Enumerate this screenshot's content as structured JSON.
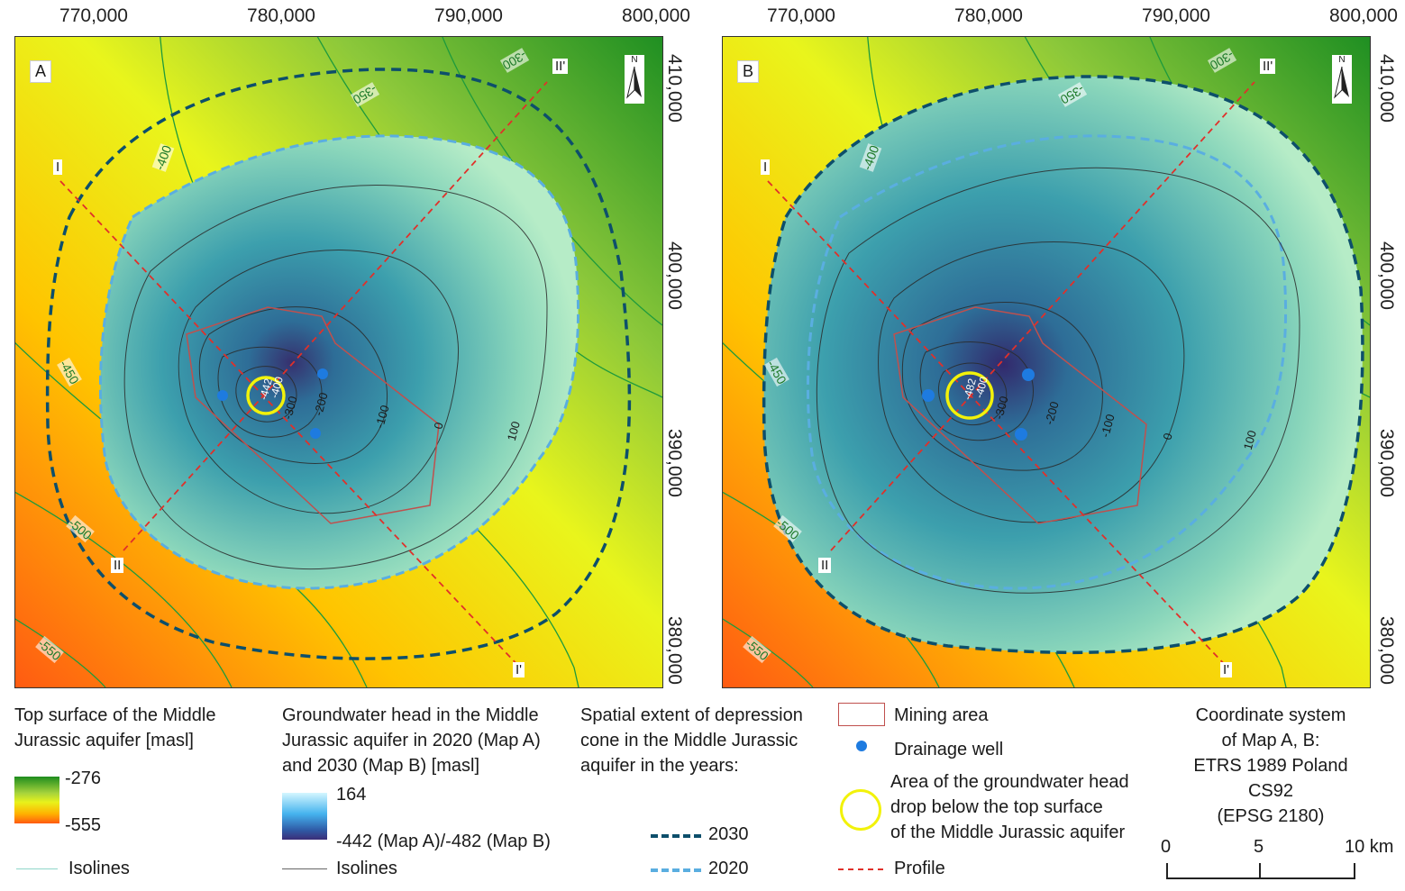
{
  "x_ticks": [
    "770,000",
    "780,000",
    "790,000",
    "800,000"
  ],
  "y_ticks": [
    "410,000",
    "400,000",
    "390,000",
    "380,000"
  ],
  "maps": [
    {
      "letter": "A",
      "min_head_label": "-442",
      "profile_labels": {
        "i": "I",
        "i_prime": "I'",
        "ii": "II",
        "ii_prime": "II'"
      },
      "isoline_top_labels": [
        "-300",
        "-350",
        "-400",
        "-450",
        "-500",
        "-550"
      ],
      "isoline_head_labels": [
        "-400",
        "-300",
        "-200",
        "-100",
        "0",
        "100"
      ]
    },
    {
      "letter": "B",
      "min_head_label": "-482",
      "profile_labels": {
        "i": "I",
        "i_prime": "I'",
        "ii": "II",
        "ii_prime": "II'"
      },
      "isoline_top_labels": [
        "-300",
        "-350",
        "-400",
        "-450",
        "-500",
        "-550"
      ],
      "isoline_head_labels": [
        "-400",
        "-300",
        "-200",
        "-100",
        "0",
        "100"
      ]
    }
  ],
  "north_arrow": "N",
  "legend": {
    "top_surface": {
      "title_line1": "Top surface of the Middle",
      "title_line2": "Jurassic aquifer [masl]",
      "max": "-276",
      "min": "-555",
      "isolines": "Isolines"
    },
    "groundwater_head": {
      "title_line1": "Groundwater head in the Middle",
      "title_line2": "Jurassic aquifer in 2020 (Map A)",
      "title_line3": "and 2030 (Map B) [masl]",
      "max": "164",
      "min": "-442 (Map A)/-482 (Map B)",
      "isolines": "Isolines"
    },
    "depression_cone": {
      "title_line1": "Spatial extent of depression",
      "title_line2": "cone in the Middle Jurassic",
      "title_line3": "aquifer in the years:",
      "year_2030": "2030",
      "year_2020": "2020"
    },
    "symbols": {
      "mining_area": "Mining area",
      "drainage_well": "Drainage well",
      "head_drop_line1": "Area of the groundwater head",
      "head_drop_line2": "drop below the top surface",
      "head_drop_line3": "of the Middle Jurassic aquifer",
      "profile": "Profile"
    },
    "coordinates": {
      "line1": "Coordinate system",
      "line2": "of Map A, B:",
      "line3": "ETRS 1989 Poland CS92",
      "line4": "(EPSG 2180)"
    },
    "scale": {
      "zero": "0",
      "five": "5",
      "ten": "10 km"
    }
  },
  "colors": {
    "cone_2030": "#0d4f6b",
    "cone_2020": "#5aaee0",
    "mining_area": "#c0504d",
    "drainage_well": "#1e7be0",
    "head_drop": "#f2f20a",
    "profile": "#e0302a"
  }
}
